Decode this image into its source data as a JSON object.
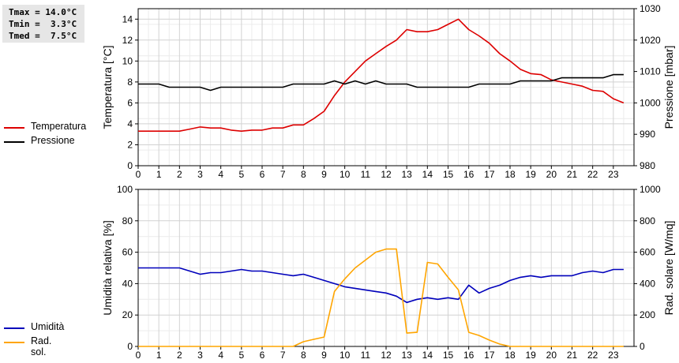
{
  "stats": {
    "tmax": "Tmax = 14.0°C",
    "tmin": "Tmin =  3.3°C",
    "tmed": "Tmed =  7.5°C"
  },
  "legend_top": [
    {
      "label": "Temperatura",
      "color": "#dd0000"
    },
    {
      "label": "Pressione",
      "color": "#000000"
    }
  ],
  "legend_bottom": [
    {
      "label": "Umidità",
      "color": "#0000bb"
    },
    {
      "label": "Rad. sol.",
      "color": "#ffa500"
    }
  ],
  "chart_data": [
    {
      "type": "line",
      "x_ticks": [
        "0",
        "1",
        "2",
        "3",
        "4",
        "5",
        "6",
        "7",
        "8",
        "9",
        "10",
        "11",
        "12",
        "13",
        "14",
        "15",
        "16",
        "17",
        "18",
        "19",
        "20",
        "21",
        "22",
        "23"
      ],
      "xlim": [
        0,
        24
      ],
      "ylabel": "Temperatura [°C]",
      "ylim": [
        0,
        15
      ],
      "y_ticks": [
        0,
        2,
        4,
        6,
        8,
        10,
        12,
        14
      ],
      "y2label": "Pressione [mbar]",
      "y2lim": [
        980,
        1030
      ],
      "y2_ticks": [
        980,
        990,
        1000,
        1010,
        1020,
        1030
      ],
      "grid": true,
      "series": [
        {
          "name": "Temperatura",
          "axis": "left",
          "color": "#dd0000",
          "x": [
            0,
            0.5,
            1,
            1.5,
            2,
            2.5,
            3,
            3.5,
            4,
            4.5,
            5,
            5.5,
            6,
            6.5,
            7,
            7.5,
            8,
            8.5,
            9,
            9.5,
            10,
            10.5,
            11,
            11.5,
            12,
            12.5,
            13,
            13.5,
            14,
            14.5,
            15,
            15.5,
            16,
            16.5,
            17,
            17.5,
            18,
            18.5,
            19,
            19.5,
            20,
            20.5,
            21,
            21.5,
            22,
            22.5,
            23,
            23.5
          ],
          "y": [
            3.3,
            3.3,
            3.3,
            3.3,
            3.3,
            3.5,
            3.7,
            3.6,
            3.6,
            3.4,
            3.3,
            3.4,
            3.4,
            3.6,
            3.6,
            3.9,
            3.9,
            4.5,
            5.2,
            6.7,
            8.0,
            9.0,
            10.0,
            10.7,
            11.4,
            12.0,
            13.0,
            12.8,
            12.8,
            13.0,
            13.5,
            14.0,
            13.0,
            12.4,
            11.7,
            10.7,
            10.0,
            9.2,
            8.8,
            8.7,
            8.2,
            8.0,
            7.8,
            7.6,
            7.2,
            7.1,
            6.4,
            6.0
          ]
        },
        {
          "name": "Pressione",
          "axis": "right",
          "color": "#000000",
          "x": [
            0,
            0.5,
            1,
            1.5,
            2,
            2.5,
            3,
            3.5,
            4,
            4.5,
            5,
            5.5,
            6,
            6.5,
            7,
            7.5,
            8,
            8.5,
            9,
            9.5,
            10,
            10.5,
            11,
            11.5,
            12,
            12.5,
            13,
            13.5,
            14,
            14.5,
            15,
            15.5,
            16,
            16.5,
            17,
            17.5,
            18,
            18.5,
            19,
            19.5,
            20,
            20.5,
            21,
            21.5,
            22,
            22.5,
            23,
            23.5
          ],
          "y": [
            1006,
            1006,
            1006,
            1005,
            1005,
            1005,
            1005,
            1004,
            1005,
            1005,
            1005,
            1005,
            1005,
            1005,
            1005,
            1006,
            1006,
            1006,
            1006,
            1007,
            1006,
            1007,
            1006,
            1007,
            1006,
            1006,
            1006,
            1005,
            1005,
            1005,
            1005,
            1005,
            1005,
            1006,
            1006,
            1006,
            1006,
            1007,
            1007,
            1007,
            1007,
            1008,
            1008,
            1008,
            1008,
            1008,
            1009,
            1009
          ]
        }
      ]
    },
    {
      "type": "line",
      "x_ticks": [
        "0",
        "1",
        "2",
        "3",
        "4",
        "5",
        "6",
        "7",
        "8",
        "9",
        "10",
        "11",
        "12",
        "13",
        "14",
        "15",
        "16",
        "17",
        "18",
        "19",
        "20",
        "21",
        "22",
        "23"
      ],
      "xlim": [
        0,
        24
      ],
      "ylabel": "Umidità relativa [%]",
      "ylim": [
        0,
        100
      ],
      "y_ticks": [
        0,
        20,
        40,
        60,
        80,
        100
      ],
      "y2label": "Rad. solare [W/mq]",
      "y2lim": [
        0,
        1000
      ],
      "y2_ticks": [
        0,
        200,
        400,
        600,
        800,
        1000
      ],
      "grid": true,
      "series": [
        {
          "name": "Umidità",
          "axis": "left",
          "color": "#0000bb",
          "x": [
            0,
            0.5,
            1,
            1.5,
            2,
            2.5,
            3,
            3.5,
            4,
            4.5,
            5,
            5.5,
            6,
            6.5,
            7,
            7.5,
            8,
            8.5,
            9,
            9.5,
            10,
            10.5,
            11,
            11.5,
            12,
            12.5,
            13,
            13.5,
            14,
            14.5,
            15,
            15.5,
            16,
            16.5,
            17,
            17.5,
            18,
            18.5,
            19,
            19.5,
            20,
            20.5,
            21,
            21.5,
            22,
            22.5,
            23,
            23.5
          ],
          "y": [
            50,
            50,
            50,
            50,
            50,
            48,
            46,
            47,
            47,
            48,
            49,
            48,
            48,
            47,
            46,
            45,
            46,
            44,
            42,
            40,
            38,
            37,
            36,
            35,
            34,
            32,
            28,
            30,
            31,
            30,
            31,
            30,
            39,
            34,
            37,
            39,
            42,
            44,
            45,
            44,
            45,
            45,
            45,
            47,
            48,
            47,
            49,
            49
          ]
        },
        {
          "name": "Rad. sol.",
          "axis": "right",
          "color": "#ffa500",
          "x": [
            0,
            0.5,
            1,
            1.5,
            2,
            2.5,
            3,
            3.5,
            4,
            4.5,
            5,
            5.5,
            6,
            6.5,
            7,
            7.5,
            8,
            8.5,
            9,
            9.5,
            10,
            10.5,
            11,
            11.5,
            12,
            12.5,
            13,
            13.5,
            14,
            14.5,
            15,
            15.5,
            16,
            16.5,
            17,
            17.5,
            18,
            18.5,
            19,
            19.5,
            20,
            20.5,
            21,
            21.5,
            22,
            22.5,
            23,
            23.5
          ],
          "y": [
            0,
            0,
            0,
            0,
            0,
            0,
            0,
            0,
            0,
            0,
            0,
            0,
            0,
            0,
            0,
            0,
            30,
            45,
            60,
            350,
            430,
            500,
            550,
            600,
            620,
            620,
            85,
            90,
            535,
            525,
            440,
            360,
            90,
            70,
            40,
            15,
            0,
            0,
            0,
            0,
            0,
            0,
            0,
            0,
            0,
            0,
            0,
            0
          ]
        }
      ]
    }
  ]
}
